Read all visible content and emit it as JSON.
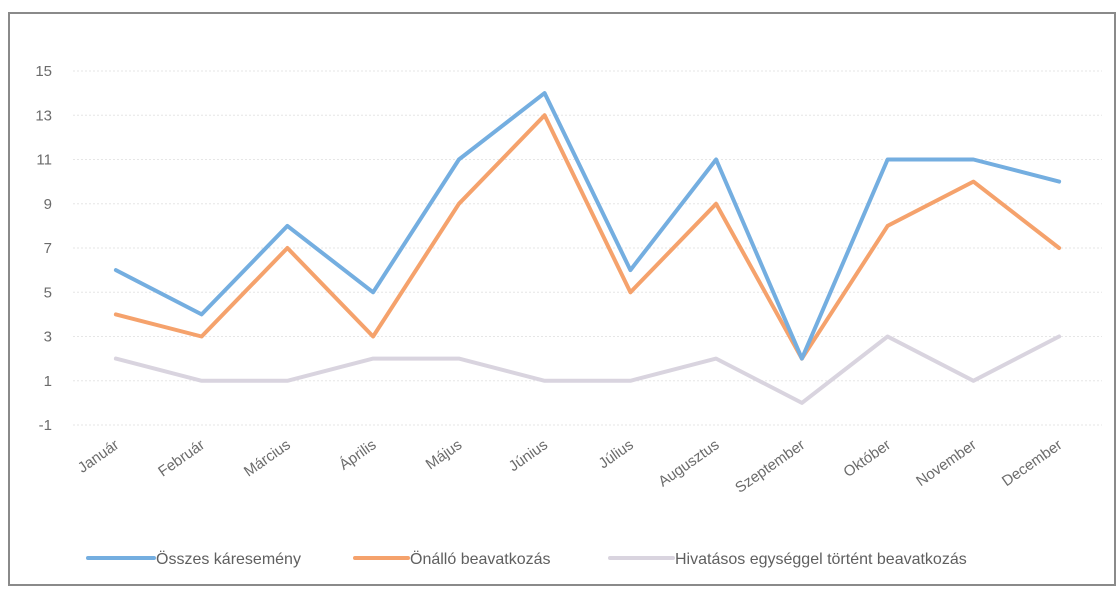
{
  "chart_data": {
    "type": "line",
    "title": "",
    "xlabel": "",
    "ylabel": "",
    "categories": [
      "Január",
      "Február",
      "Március",
      "Április",
      "Május",
      "Június",
      "Július",
      "Augusztus",
      "Szeptember",
      "Október",
      "November",
      "December"
    ],
    "y_ticks": [
      -1,
      1,
      3,
      5,
      7,
      9,
      11,
      13,
      15
    ],
    "ylim": [
      -1,
      15
    ],
    "grid": true,
    "legend_position": "bottom",
    "series": [
      {
        "name": "Összes káresemény",
        "color": "#74aee0",
        "values": [
          6,
          4,
          8,
          5,
          11,
          14,
          6,
          11,
          2,
          11,
          11,
          10
        ]
      },
      {
        "name": "Önálló beavatkozás",
        "color": "#f5a26c",
        "values": [
          4,
          3,
          7,
          3,
          9,
          13,
          5,
          9,
          2,
          8,
          10,
          7
        ]
      },
      {
        "name": "Hivatásos egységgel történt beavatkozás",
        "color": "#d9d4df",
        "values": [
          2,
          1,
          1,
          2,
          2,
          1,
          1,
          2,
          0,
          3,
          1,
          3
        ]
      }
    ]
  }
}
